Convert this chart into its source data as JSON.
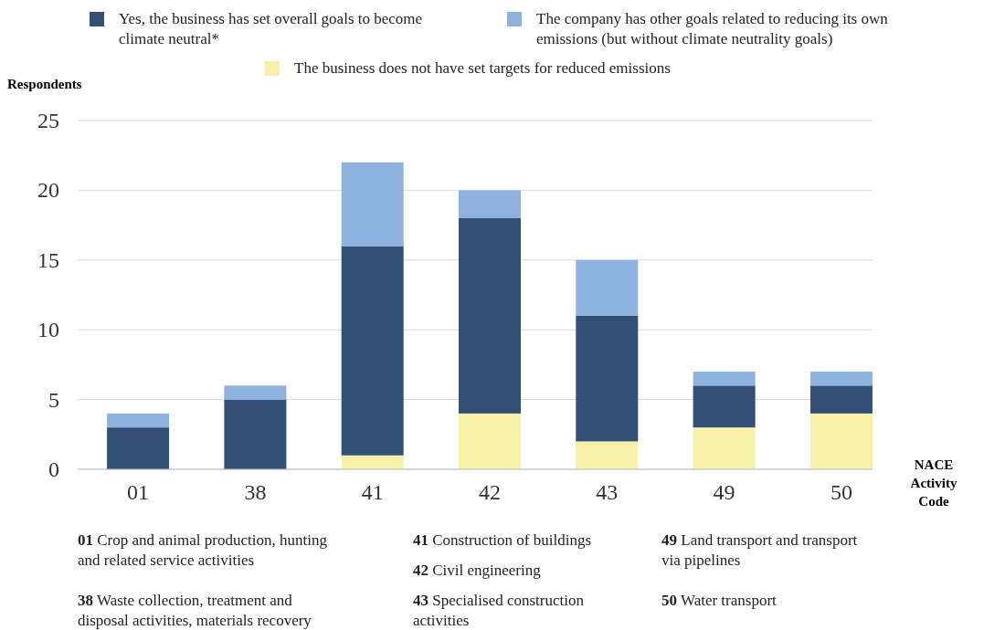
{
  "chart_data": {
    "type": "bar",
    "stacked": true,
    "ylabel": "Respondents",
    "xlabel": "NACE Activity Code",
    "categories": [
      "01",
      "38",
      "41",
      "42",
      "43",
      "49",
      "50"
    ],
    "series": [
      {
        "name": "The business does not have set targets for reduced emissions",
        "color": "#f7f0a8",
        "values": [
          0,
          0,
          1,
          4,
          2,
          3,
          4
        ]
      },
      {
        "name": "Yes, the business has set overall goals to become climate neutral*",
        "color": "#334f75",
        "values": [
          3,
          5,
          15,
          14,
          9,
          3,
          2
        ]
      },
      {
        "name": "The company has other goals related to reducing its own emissions (but without climate neutrality goals)",
        "color": "#8eb2e0",
        "values": [
          1,
          1,
          6,
          2,
          4,
          1,
          1
        ]
      }
    ],
    "ylim": [
      0,
      25
    ],
    "yticks": [
      0,
      5,
      10,
      15,
      20,
      25
    ],
    "grid": "y",
    "legend": "top",
    "annotations": [
      "01 Crop and animal production, hunting and related service activities",
      "38 Waste collection, treatment and disposal activities, materials recovery",
      "41 Construction of buildings",
      "42 Civil engineering",
      "43 Specialised construction activities",
      "49 Land transport and transport via pipelines",
      "50 Water transport"
    ]
  }
}
